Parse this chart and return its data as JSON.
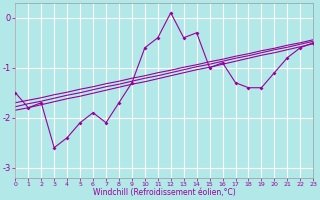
{
  "xlabel": "Windchill (Refroidissement éolien,°C)",
  "background_color": "#b2e8e8",
  "grid_color": "#ffffff",
  "line_color": "#990099",
  "xlim": [
    0,
    23
  ],
  "ylim": [
    -3.2,
    0.3
  ],
  "yticks": [
    0,
    -1,
    -2,
    -3
  ],
  "xticks": [
    0,
    1,
    2,
    3,
    4,
    5,
    6,
    7,
    8,
    9,
    10,
    11,
    12,
    13,
    14,
    15,
    16,
    17,
    18,
    19,
    20,
    21,
    22,
    23
  ],
  "main_y": [
    -1.5,
    -1.8,
    -1.7,
    -2.6,
    -2.4,
    -2.1,
    -1.9,
    -2.1,
    -1.7,
    -1.3,
    -0.6,
    -0.4,
    0.1,
    -0.4,
    -0.3,
    -1.0,
    -0.9,
    -1.3,
    -1.4,
    -1.4,
    -1.1,
    -0.8,
    -0.6,
    -0.5
  ],
  "trend1": [
    -1.85,
    -1.8,
    -1.74,
    -1.68,
    -1.62,
    -1.57,
    -1.51,
    -1.45,
    -1.39,
    -1.33,
    -1.28,
    -1.22,
    -1.16,
    -1.1,
    -1.04,
    -0.99,
    -0.93,
    -0.87,
    -0.81,
    -0.75,
    -0.7,
    -0.64,
    -0.58,
    -0.52
  ],
  "trend2": [
    -1.78,
    -1.72,
    -1.67,
    -1.61,
    -1.55,
    -1.5,
    -1.44,
    -1.38,
    -1.33,
    -1.27,
    -1.21,
    -1.16,
    -1.1,
    -1.04,
    -0.98,
    -0.93,
    -0.87,
    -0.81,
    -0.76,
    -0.7,
    -0.64,
    -0.59,
    -0.53,
    -0.47
  ],
  "trend3": [
    -1.7,
    -1.65,
    -1.6,
    -1.54,
    -1.49,
    -1.43,
    -1.38,
    -1.32,
    -1.27,
    -1.21,
    -1.16,
    -1.1,
    -1.05,
    -0.99,
    -0.94,
    -0.88,
    -0.83,
    -0.77,
    -0.72,
    -0.66,
    -0.61,
    -0.55,
    -0.5,
    -0.44
  ]
}
